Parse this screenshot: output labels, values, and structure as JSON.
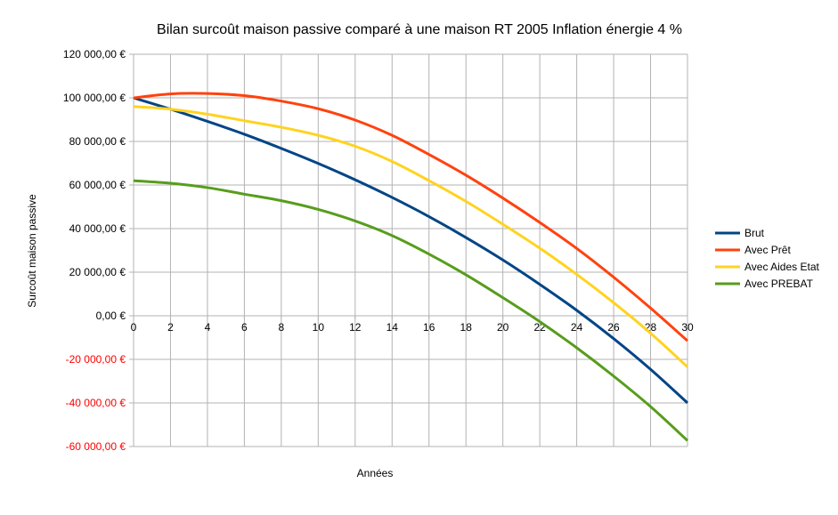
{
  "chart_data": {
    "type": "line",
    "title": "Bilan surcoût maison passive comparé à une maison RT 2005 Inflation énergie 4 %",
    "xlabel": "Années",
    "ylabel": "Surcoût maison passive",
    "xlim": [
      0,
      30
    ],
    "ylim": [
      -60000,
      120000
    ],
    "grid": true,
    "legend_position": "right",
    "x_ticks": [
      "0",
      "2",
      "4",
      "6",
      "8",
      "10",
      "12",
      "14",
      "16",
      "18",
      "20",
      "22",
      "24",
      "26",
      "28",
      "30"
    ],
    "y_ticks": [
      {
        "value": 120000,
        "label": "120 000,00 €"
      },
      {
        "value": 100000,
        "label": "100 000,00 €"
      },
      {
        "value": 80000,
        "label": "80 000,00 €"
      },
      {
        "value": 60000,
        "label": "60 000,00 €"
      },
      {
        "value": 40000,
        "label": "40 000,00 €"
      },
      {
        "value": 20000,
        "label": "20 000,00 €"
      },
      {
        "value": 0,
        "label": "0,00 €"
      },
      {
        "value": -20000,
        "label": "-20 000,00 €"
      },
      {
        "value": -40000,
        "label": "-40 000,00 €"
      },
      {
        "value": -60000,
        "label": "-60 000,00 €"
      }
    ],
    "x": [
      0,
      2,
      4,
      6,
      8,
      10,
      12,
      14,
      16,
      18,
      20,
      22,
      24,
      26,
      28,
      30
    ],
    "series": [
      {
        "name": "Brut",
        "color": "#004586",
        "values": [
          100000,
          94800,
          89200,
          83300,
          76800,
          69900,
          62400,
          54300,
          45500,
          35900,
          25600,
          14400,
          2500,
          -10500,
          -24600,
          -40000
        ]
      },
      {
        "name": "Avec Prêt",
        "color": "#ff420e",
        "values": [
          100000,
          101800,
          102000,
          101000,
          98500,
          95000,
          89800,
          82800,
          74000,
          64500,
          54000,
          42800,
          30900,
          17700,
          3500,
          -11500
        ]
      },
      {
        "name": "Avec Aides Etat",
        "color": "#ffd320",
        "values": [
          96000,
          94800,
          92500,
          89500,
          86500,
          82800,
          77800,
          70800,
          62000,
          52500,
          42000,
          31000,
          19000,
          6000,
          -8000,
          -23500
        ]
      },
      {
        "name": "Avec PREBAT",
        "color": "#579d1c",
        "values": [
          62000,
          60800,
          58800,
          55800,
          52800,
          48800,
          43500,
          36800,
          28300,
          18800,
          8300,
          -2700,
          -14700,
          -27700,
          -41700,
          -57300
        ]
      }
    ]
  }
}
